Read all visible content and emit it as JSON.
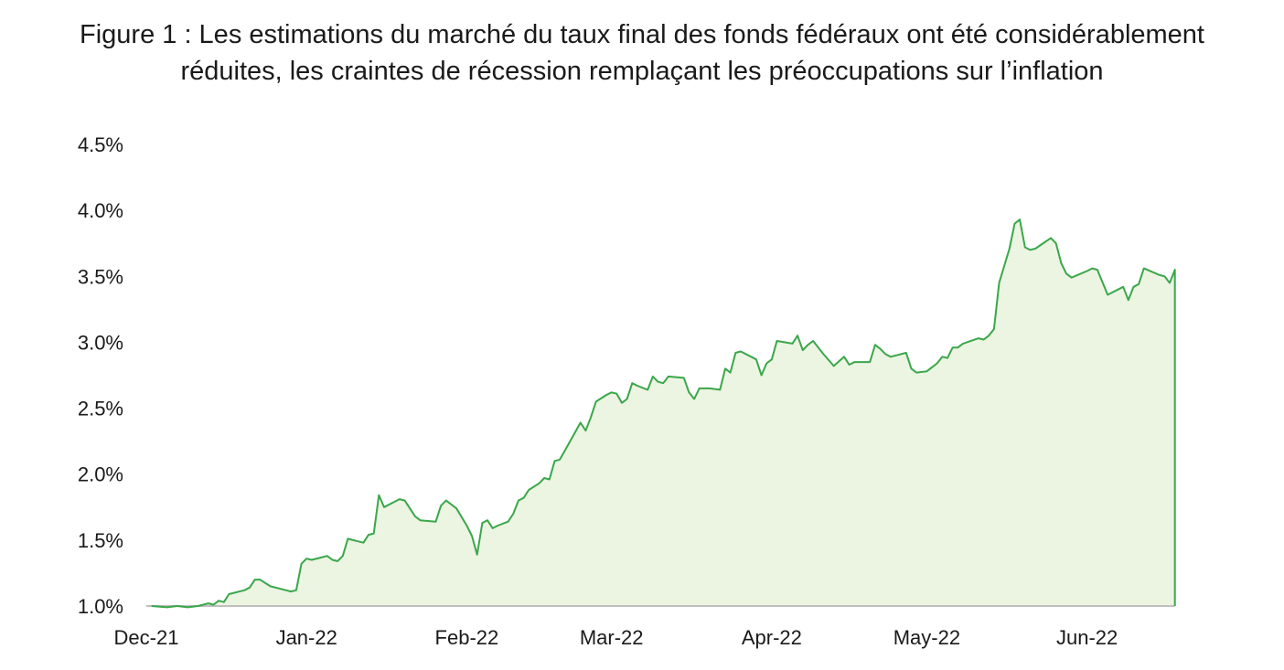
{
  "chart_data": {
    "type": "area",
    "title_line1": "Figure 1 : Les estimations du marché du taux final des fonds fédéraux ont été considérablement",
    "title_line2": "réduites, les craintes de récession remplaçant les préoccupations sur l’inflation",
    "xlabel": "",
    "ylabel": "",
    "ylim": [
      1.0,
      4.5
    ],
    "x_range": [
      "2021-12-01",
      "2022-06-20"
    ],
    "y_ticks": [
      {
        "value": 1.0,
        "label": "1.0%"
      },
      {
        "value": 1.5,
        "label": "1.5%"
      },
      {
        "value": 2.0,
        "label": "2.0%"
      },
      {
        "value": 2.5,
        "label": "2.5%"
      },
      {
        "value": 3.0,
        "label": "3.0%"
      },
      {
        "value": 3.5,
        "label": "3.5%"
      },
      {
        "value": 4.0,
        "label": "4.0%"
      },
      {
        "value": 4.5,
        "label": "4.5%"
      }
    ],
    "x_ticks": [
      {
        "date": "2021-12-01",
        "label": "Dec-21"
      },
      {
        "date": "2022-01-01",
        "label": "Jan-22"
      },
      {
        "date": "2022-02-01",
        "label": "Feb-22"
      },
      {
        "date": "2022-03-01",
        "label": "Mar-22"
      },
      {
        "date": "2022-04-01",
        "label": "Apr-22"
      },
      {
        "date": "2022-05-01",
        "label": "May-22"
      },
      {
        "date": "2022-06-01",
        "label": "Jun-22"
      }
    ],
    "grid": false,
    "legend": "none",
    "line_color": "#3aa74a",
    "fill_color": "#ecf4e2",
    "axis_color": "#bfbfbf",
    "points": [
      [
        "2021-12-02",
        1.0
      ],
      [
        "2021-12-05",
        0.99
      ],
      [
        "2021-12-07",
        1.0
      ],
      [
        "2021-12-09",
        0.99
      ],
      [
        "2021-12-11",
        1.0
      ],
      [
        "2021-12-13",
        1.02
      ],
      [
        "2021-12-14",
        1.01
      ],
      [
        "2021-12-15",
        1.04
      ],
      [
        "2021-12-16",
        1.03
      ],
      [
        "2021-12-17",
        1.09
      ],
      [
        "2021-12-20",
        1.12
      ],
      [
        "2021-12-21",
        1.14
      ],
      [
        "2021-12-22",
        1.2
      ],
      [
        "2021-12-23",
        1.2
      ],
      [
        "2021-12-25",
        1.15
      ],
      [
        "2021-12-28",
        1.12
      ],
      [
        "2021-12-29",
        1.11
      ],
      [
        "2021-12-30",
        1.12
      ],
      [
        "2021-12-31",
        1.32
      ],
      [
        "2022-01-01",
        1.36
      ],
      [
        "2022-01-02",
        1.35
      ],
      [
        "2022-01-04",
        1.37
      ],
      [
        "2022-01-05",
        1.38
      ],
      [
        "2022-01-06",
        1.35
      ],
      [
        "2022-01-07",
        1.34
      ],
      [
        "2022-01-08",
        1.38
      ],
      [
        "2022-01-09",
        1.51
      ],
      [
        "2022-01-11",
        1.49
      ],
      [
        "2022-01-12",
        1.48
      ],
      [
        "2022-01-13",
        1.54
      ],
      [
        "2022-01-14",
        1.55
      ],
      [
        "2022-01-15",
        1.84
      ],
      [
        "2022-01-16",
        1.75
      ],
      [
        "2022-01-18",
        1.79
      ],
      [
        "2022-01-19",
        1.81
      ],
      [
        "2022-01-20",
        1.8
      ],
      [
        "2022-01-21",
        1.74
      ],
      [
        "2022-01-22",
        1.68
      ],
      [
        "2022-01-23",
        1.65
      ],
      [
        "2022-01-26",
        1.64
      ],
      [
        "2022-01-27",
        1.76
      ],
      [
        "2022-01-28",
        1.8
      ],
      [
        "2022-01-29",
        1.77
      ],
      [
        "2022-01-30",
        1.74
      ],
      [
        "2022-02-01",
        1.61
      ],
      [
        "2022-02-02",
        1.53
      ],
      [
        "2022-02-03",
        1.39
      ],
      [
        "2022-02-04",
        1.63
      ],
      [
        "2022-02-05",
        1.65
      ],
      [
        "2022-02-06",
        1.59
      ],
      [
        "2022-02-07",
        1.61
      ],
      [
        "2022-02-09",
        1.64
      ],
      [
        "2022-02-10",
        1.7
      ],
      [
        "2022-02-11",
        1.8
      ],
      [
        "2022-02-12",
        1.82
      ],
      [
        "2022-02-13",
        1.88
      ],
      [
        "2022-02-15",
        1.93
      ],
      [
        "2022-02-16",
        1.97
      ],
      [
        "2022-02-17",
        1.96
      ],
      [
        "2022-02-18",
        2.1
      ],
      [
        "2022-02-19",
        2.11
      ],
      [
        "2022-02-20",
        2.18
      ],
      [
        "2022-02-22",
        2.32
      ],
      [
        "2022-02-23",
        2.39
      ],
      [
        "2022-02-24",
        2.33
      ],
      [
        "2022-02-25",
        2.43
      ],
      [
        "2022-02-26",
        2.55
      ],
      [
        "2022-02-28",
        2.6
      ],
      [
        "2022-03-01",
        2.62
      ],
      [
        "2022-03-02",
        2.61
      ],
      [
        "2022-03-03",
        2.54
      ],
      [
        "2022-03-04",
        2.57
      ],
      [
        "2022-03-05",
        2.69
      ],
      [
        "2022-03-06",
        2.67
      ],
      [
        "2022-03-08",
        2.64
      ],
      [
        "2022-03-09",
        2.74
      ],
      [
        "2022-03-10",
        2.7
      ],
      [
        "2022-03-11",
        2.69
      ],
      [
        "2022-03-12",
        2.74
      ],
      [
        "2022-03-15",
        2.73
      ],
      [
        "2022-03-16",
        2.62
      ],
      [
        "2022-03-17",
        2.57
      ],
      [
        "2022-03-18",
        2.65
      ],
      [
        "2022-03-20",
        2.65
      ],
      [
        "2022-03-22",
        2.64
      ],
      [
        "2022-03-23",
        2.8
      ],
      [
        "2022-03-24",
        2.77
      ],
      [
        "2022-03-25",
        2.92
      ],
      [
        "2022-03-26",
        2.93
      ],
      [
        "2022-03-29",
        2.87
      ],
      [
        "2022-03-30",
        2.75
      ],
      [
        "2022-03-31",
        2.84
      ],
      [
        "2022-04-01",
        2.87
      ],
      [
        "2022-04-02",
        3.01
      ],
      [
        "2022-04-05",
        2.99
      ],
      [
        "2022-04-06",
        3.05
      ],
      [
        "2022-04-07",
        2.94
      ],
      [
        "2022-04-08",
        2.98
      ],
      [
        "2022-04-09",
        3.01
      ],
      [
        "2022-04-11",
        2.91
      ],
      [
        "2022-04-13",
        2.82
      ],
      [
        "2022-04-15",
        2.89
      ],
      [
        "2022-04-16",
        2.83
      ],
      [
        "2022-04-17",
        2.85
      ],
      [
        "2022-04-20",
        2.85
      ],
      [
        "2022-04-21",
        2.98
      ],
      [
        "2022-04-22",
        2.95
      ],
      [
        "2022-04-23",
        2.91
      ],
      [
        "2022-04-24",
        2.89
      ],
      [
        "2022-04-27",
        2.92
      ],
      [
        "2022-04-28",
        2.8
      ],
      [
        "2022-04-29",
        2.77
      ],
      [
        "2022-05-01",
        2.78
      ],
      [
        "2022-05-03",
        2.84
      ],
      [
        "2022-05-04",
        2.89
      ],
      [
        "2022-05-05",
        2.88
      ],
      [
        "2022-05-06",
        2.96
      ],
      [
        "2022-05-07",
        2.96
      ],
      [
        "2022-05-08",
        2.99
      ],
      [
        "2022-05-11",
        3.03
      ],
      [
        "2022-05-12",
        3.02
      ],
      [
        "2022-05-13",
        3.05
      ],
      [
        "2022-05-14",
        3.1
      ],
      [
        "2022-05-15",
        3.45
      ],
      [
        "2022-05-17",
        3.71
      ],
      [
        "2022-05-18",
        3.9
      ],
      [
        "2022-05-19",
        3.93
      ],
      [
        "2022-05-20",
        3.72
      ],
      [
        "2022-05-21",
        3.7
      ],
      [
        "2022-05-22",
        3.71
      ],
      [
        "2022-05-25",
        3.79
      ],
      [
        "2022-05-26",
        3.75
      ],
      [
        "2022-05-27",
        3.6
      ],
      [
        "2022-05-28",
        3.52
      ],
      [
        "2022-05-29",
        3.49
      ],
      [
        "2022-06-01",
        3.54
      ],
      [
        "2022-06-02",
        3.56
      ],
      [
        "2022-06-03",
        3.55
      ],
      [
        "2022-06-05",
        3.36
      ],
      [
        "2022-06-08",
        3.42
      ],
      [
        "2022-06-09",
        3.32
      ],
      [
        "2022-06-10",
        3.42
      ],
      [
        "2022-06-11",
        3.44
      ],
      [
        "2022-06-12",
        3.56
      ],
      [
        "2022-06-15",
        3.51
      ],
      [
        "2022-06-16",
        3.5
      ],
      [
        "2022-06-17",
        3.45
      ],
      [
        "2022-06-18",
        3.55
      ]
    ]
  }
}
